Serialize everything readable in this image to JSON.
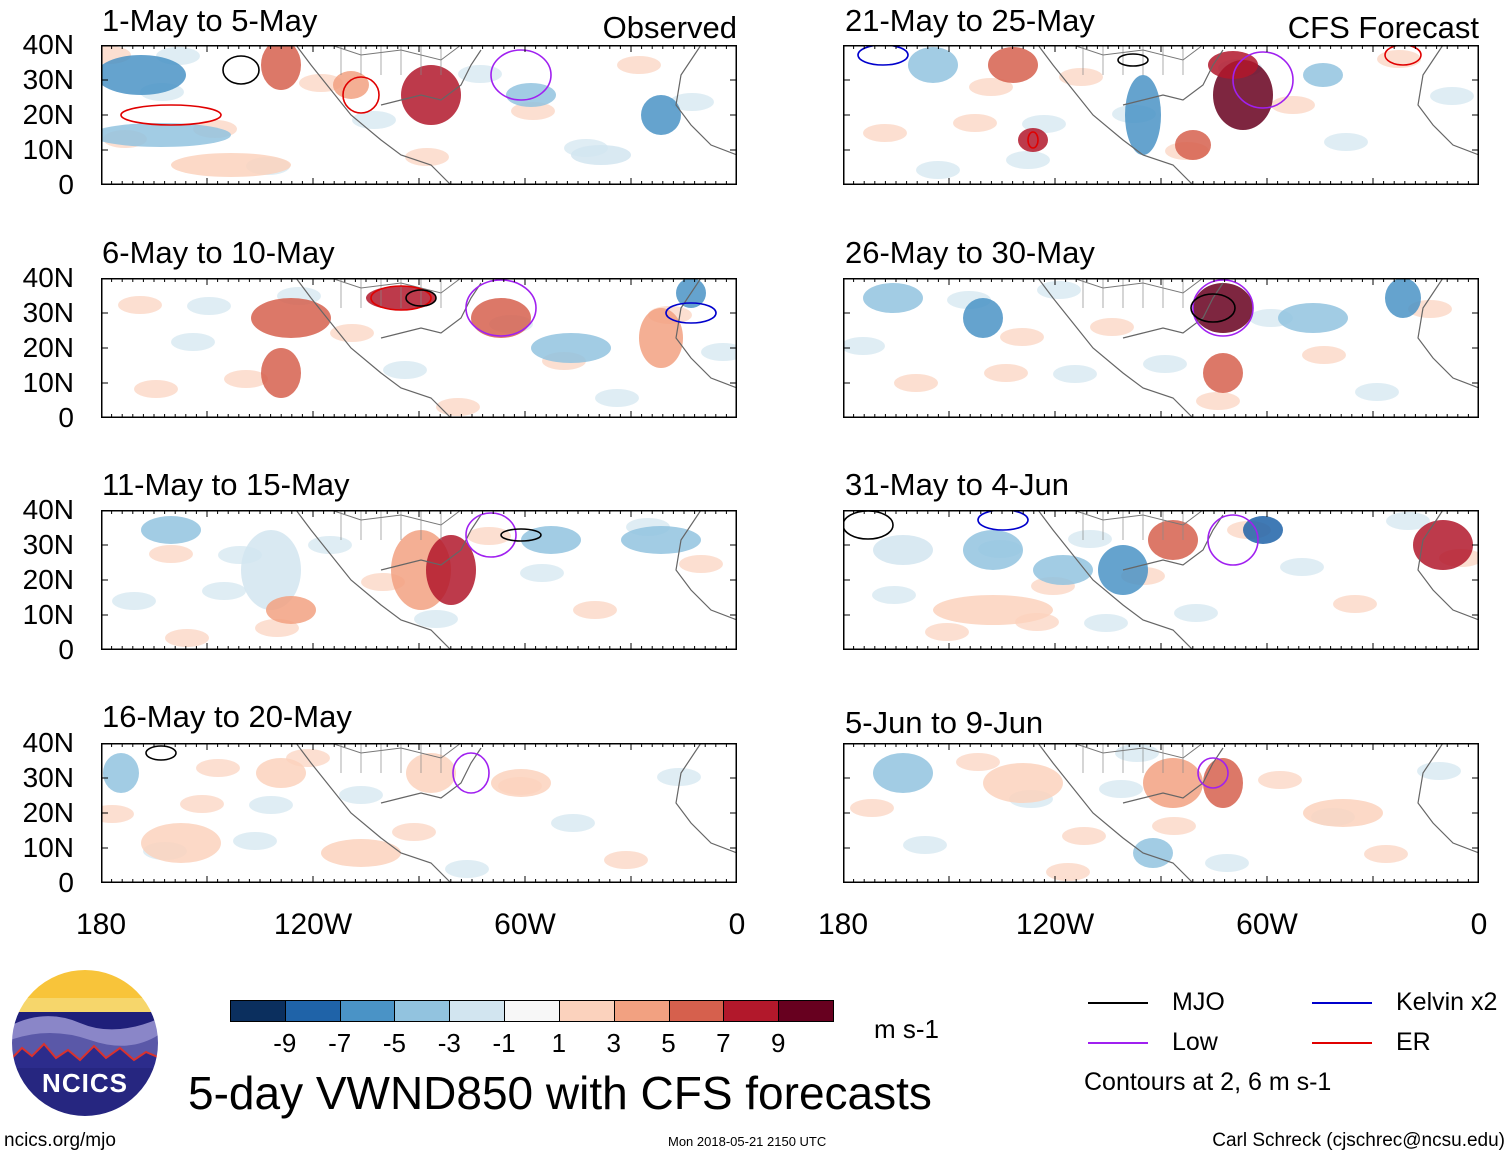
{
  "panels": {
    "observed": [
      {
        "title": "1-May to 5-May",
        "corner_label": "Observed"
      },
      {
        "title": "6-May to 10-May"
      },
      {
        "title": "11-May to 15-May"
      },
      {
        "title": "16-May to 20-May"
      }
    ],
    "forecast": [
      {
        "title": "21-May to 25-May",
        "corner_label": "CFS Forecast"
      },
      {
        "title": "26-May to 30-May"
      },
      {
        "title": "31-May to 4-Jun"
      },
      {
        "title": "5-Jun to 9-Jun"
      }
    ]
  },
  "axes": {
    "lat_ticks": [
      "40N",
      "30N",
      "20N",
      "10N",
      "0"
    ],
    "lon_ticks": [
      "180",
      "120W",
      "60W",
      "0"
    ]
  },
  "colorbar": {
    "colors": [
      "#0b2f5e",
      "#1f63a8",
      "#4a93c6",
      "#92c3df",
      "#d2e5f0",
      "#f7f7f7",
      "#fbd2bd",
      "#f2a181",
      "#d6604d",
      "#b2182b",
      "#67001f"
    ],
    "ticks": [
      "-9",
      "-7",
      "-5",
      "-3",
      "-1",
      "1",
      "3",
      "5",
      "7",
      "9"
    ],
    "units": "m s-1"
  },
  "title": "5-day VWND850 with CFS forecasts",
  "legend": {
    "items": [
      {
        "label": "MJO",
        "color": "#000000"
      },
      {
        "label": "Kelvin x2",
        "color": "#0000cc"
      },
      {
        "label": "Low",
        "color": "#a020f0"
      },
      {
        "label": "ER",
        "color": "#e00000"
      }
    ],
    "note": "Contours at 2, 6 m s-1"
  },
  "footer": {
    "logo_text": "NCICS",
    "url": "ncics.org/mjo",
    "timestamp": "Mon 2018-05-21 2150 UTC",
    "credit": "Carl Schreck (cjschrec@ncsu.edu)"
  }
}
